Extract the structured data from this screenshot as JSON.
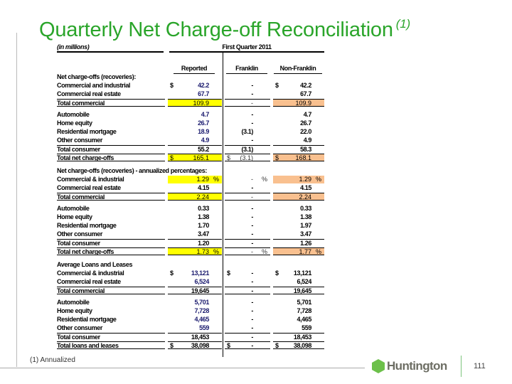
{
  "title": "Quarterly Net Charge-off Reconciliation",
  "title_note": "(1)",
  "units": "(in millions)",
  "period": "First Quarter 2011",
  "columns": [
    "Reported",
    "Franklin",
    "Non-Franklin"
  ],
  "colors": {
    "title": "#2aa52a",
    "reported_highlight": "#ffff00",
    "nonfranklin_highlight": "#f9c08f",
    "value_blue": "#1a1a6e"
  },
  "rows": [
    {
      "cls": "sec first",
      "label": "Net charge-offs (recoveries):"
    },
    {
      "cls": "blue",
      "label": "Commercial and industrial",
      "r": [
        "$",
        "42.2",
        ""
      ],
      "f": [
        "",
        "-",
        ""
      ],
      "n": [
        "$",
        "42.2",
        ""
      ]
    },
    {
      "cls": "blue",
      "label": "Commercial real estate",
      "r": [
        "",
        "67.7",
        ""
      ],
      "f": [
        "",
        "-",
        ""
      ],
      "n": [
        "",
        "67.7",
        ""
      ]
    },
    {
      "cls": "tt tb light",
      "hl": true,
      "label": "Total commercial",
      "r": [
        "",
        "109.9",
        ""
      ],
      "f": [
        "",
        "-",
        ""
      ],
      "n": [
        "",
        "109.9",
        ""
      ]
    },
    {
      "cls": "gap blue",
      "label": "Automobile",
      "r": [
        "",
        "4.7",
        ""
      ],
      "f": [
        "",
        "-",
        ""
      ],
      "n": [
        "",
        "4.7",
        ""
      ]
    },
    {
      "cls": "blue",
      "label": "Home equity",
      "r": [
        "",
        "26.7",
        ""
      ],
      "f": [
        "",
        "-",
        ""
      ],
      "n": [
        "",
        "26.7",
        ""
      ]
    },
    {
      "cls": "blue",
      "label": "Residential mortgage",
      "r": [
        "",
        "18.9",
        ""
      ],
      "f": [
        "",
        "(3.1)",
        ""
      ],
      "n": [
        "",
        "22.0",
        ""
      ]
    },
    {
      "cls": "blue",
      "label": "Other consumer",
      "r": [
        "",
        "4.9",
        ""
      ],
      "f": [
        "",
        "-",
        ""
      ],
      "n": [
        "",
        "4.9",
        ""
      ]
    },
    {
      "cls": "tt",
      "label": "Total consumer",
      "r": [
        "",
        "55.2",
        ""
      ],
      "f": [
        "",
        "(3.1)",
        ""
      ],
      "n": [
        "",
        "58.3",
        ""
      ]
    },
    {
      "cls": "tt tb light",
      "hl": true,
      "label": "Total net charge-offs",
      "r": [
        "$",
        "165.1",
        ""
      ],
      "f": [
        "$",
        "(3.1)",
        ""
      ],
      "n": [
        "$",
        "168.1",
        ""
      ]
    },
    {
      "cls": "sec",
      "label": "Net charge-offs (recoveries) - annualized percentages:"
    },
    {
      "cls": "light",
      "hl": true,
      "label": "Commercial & industrial",
      "r": [
        "",
        "1.29",
        "%"
      ],
      "f": [
        "",
        "-",
        "%"
      ],
      "n": [
        "",
        "1.29",
        "%"
      ]
    },
    {
      "cls": "",
      "label": "Commercial real estate",
      "r": [
        "",
        "4.15",
        ""
      ],
      "f": [
        "",
        "-",
        ""
      ],
      "n": [
        "",
        "4.15",
        ""
      ]
    },
    {
      "cls": "tt tb light",
      "hl": true,
      "label": "Total commercial",
      "r": [
        "",
        "2.24",
        ""
      ],
      "f": [
        "",
        "-",
        ""
      ],
      "n": [
        "",
        "2.24",
        ""
      ]
    },
    {
      "cls": "gap",
      "label": "Automobile",
      "r": [
        "",
        "0.33",
        ""
      ],
      "f": [
        "",
        "-",
        ""
      ],
      "n": [
        "",
        "0.33",
        ""
      ]
    },
    {
      "cls": "",
      "label": "Home equity",
      "r": [
        "",
        "1.38",
        ""
      ],
      "f": [
        "",
        "-",
        ""
      ],
      "n": [
        "",
        "1.38",
        ""
      ]
    },
    {
      "cls": "",
      "label": "Residential mortgage",
      "r": [
        "",
        "1.70",
        ""
      ],
      "f": [
        "",
        "-",
        ""
      ],
      "n": [
        "",
        "1.97",
        ""
      ]
    },
    {
      "cls": "",
      "label": "Other consumer",
      "r": [
        "",
        "3.47",
        ""
      ],
      "f": [
        "",
        "-",
        ""
      ],
      "n": [
        "",
        "3.47",
        ""
      ]
    },
    {
      "cls": "tt",
      "label": "Total consumer",
      "r": [
        "",
        "1.20",
        ""
      ],
      "f": [
        "",
        "-",
        ""
      ],
      "n": [
        "",
        "1.26",
        ""
      ]
    },
    {
      "cls": "tt tb light",
      "hl": true,
      "label": "Total net charge-offs",
      "r": [
        "",
        "1.73",
        "%"
      ],
      "f": [
        "",
        "-",
        "%"
      ],
      "n": [
        "",
        "1.77",
        "%"
      ]
    },
    {
      "cls": "sec",
      "label": "Average Loans and Leases"
    },
    {
      "cls": "blue",
      "label": "Commercial & industrial",
      "r": [
        "$",
        "13,121",
        ""
      ],
      "f": [
        "$",
        "-",
        ""
      ],
      "n": [
        "$",
        "13,121",
        ""
      ]
    },
    {
      "cls": "blue",
      "label": "Commercial real estate",
      "r": [
        "",
        "6,524",
        ""
      ],
      "f": [
        "",
        "-",
        ""
      ],
      "n": [
        "",
        "6,524",
        ""
      ]
    },
    {
      "cls": "tt tb",
      "label": "Total commercial",
      "r": [
        "",
        "19,645",
        ""
      ],
      "f": [
        "",
        "-",
        ""
      ],
      "n": [
        "",
        "19,645",
        ""
      ]
    },
    {
      "cls": "gap blue",
      "label": "Automobile",
      "r": [
        "",
        "5,701",
        ""
      ],
      "f": [
        "",
        "-",
        ""
      ],
      "n": [
        "",
        "5,701",
        ""
      ]
    },
    {
      "cls": "blue",
      "label": "Home equity",
      "r": [
        "",
        "7,728",
        ""
      ],
      "f": [
        "",
        "-",
        ""
      ],
      "n": [
        "",
        "7,728",
        ""
      ]
    },
    {
      "cls": "blue",
      "label": "Residential mortgage",
      "r": [
        "",
        "4,465",
        ""
      ],
      "f": [
        "",
        "-",
        ""
      ],
      "n": [
        "",
        "4,465",
        ""
      ]
    },
    {
      "cls": "blue",
      "label": "Other consumer",
      "r": [
        "",
        "559",
        ""
      ],
      "f": [
        "",
        "-",
        ""
      ],
      "n": [
        "",
        "559",
        ""
      ]
    },
    {
      "cls": "tt",
      "label": "Total consumer",
      "r": [
        "",
        "18,453",
        ""
      ],
      "f": [
        "",
        "-",
        ""
      ],
      "n": [
        "",
        "18,453",
        ""
      ]
    },
    {
      "cls": "tt tb",
      "label": "Total loans and leases",
      "r": [
        "$",
        "38,098",
        ""
      ],
      "f": [
        "$",
        "-",
        ""
      ],
      "n": [
        "$",
        "38,098",
        ""
      ]
    }
  ],
  "footnote": "(1)  Annualized",
  "logo": "Huntington",
  "page_number": "111"
}
